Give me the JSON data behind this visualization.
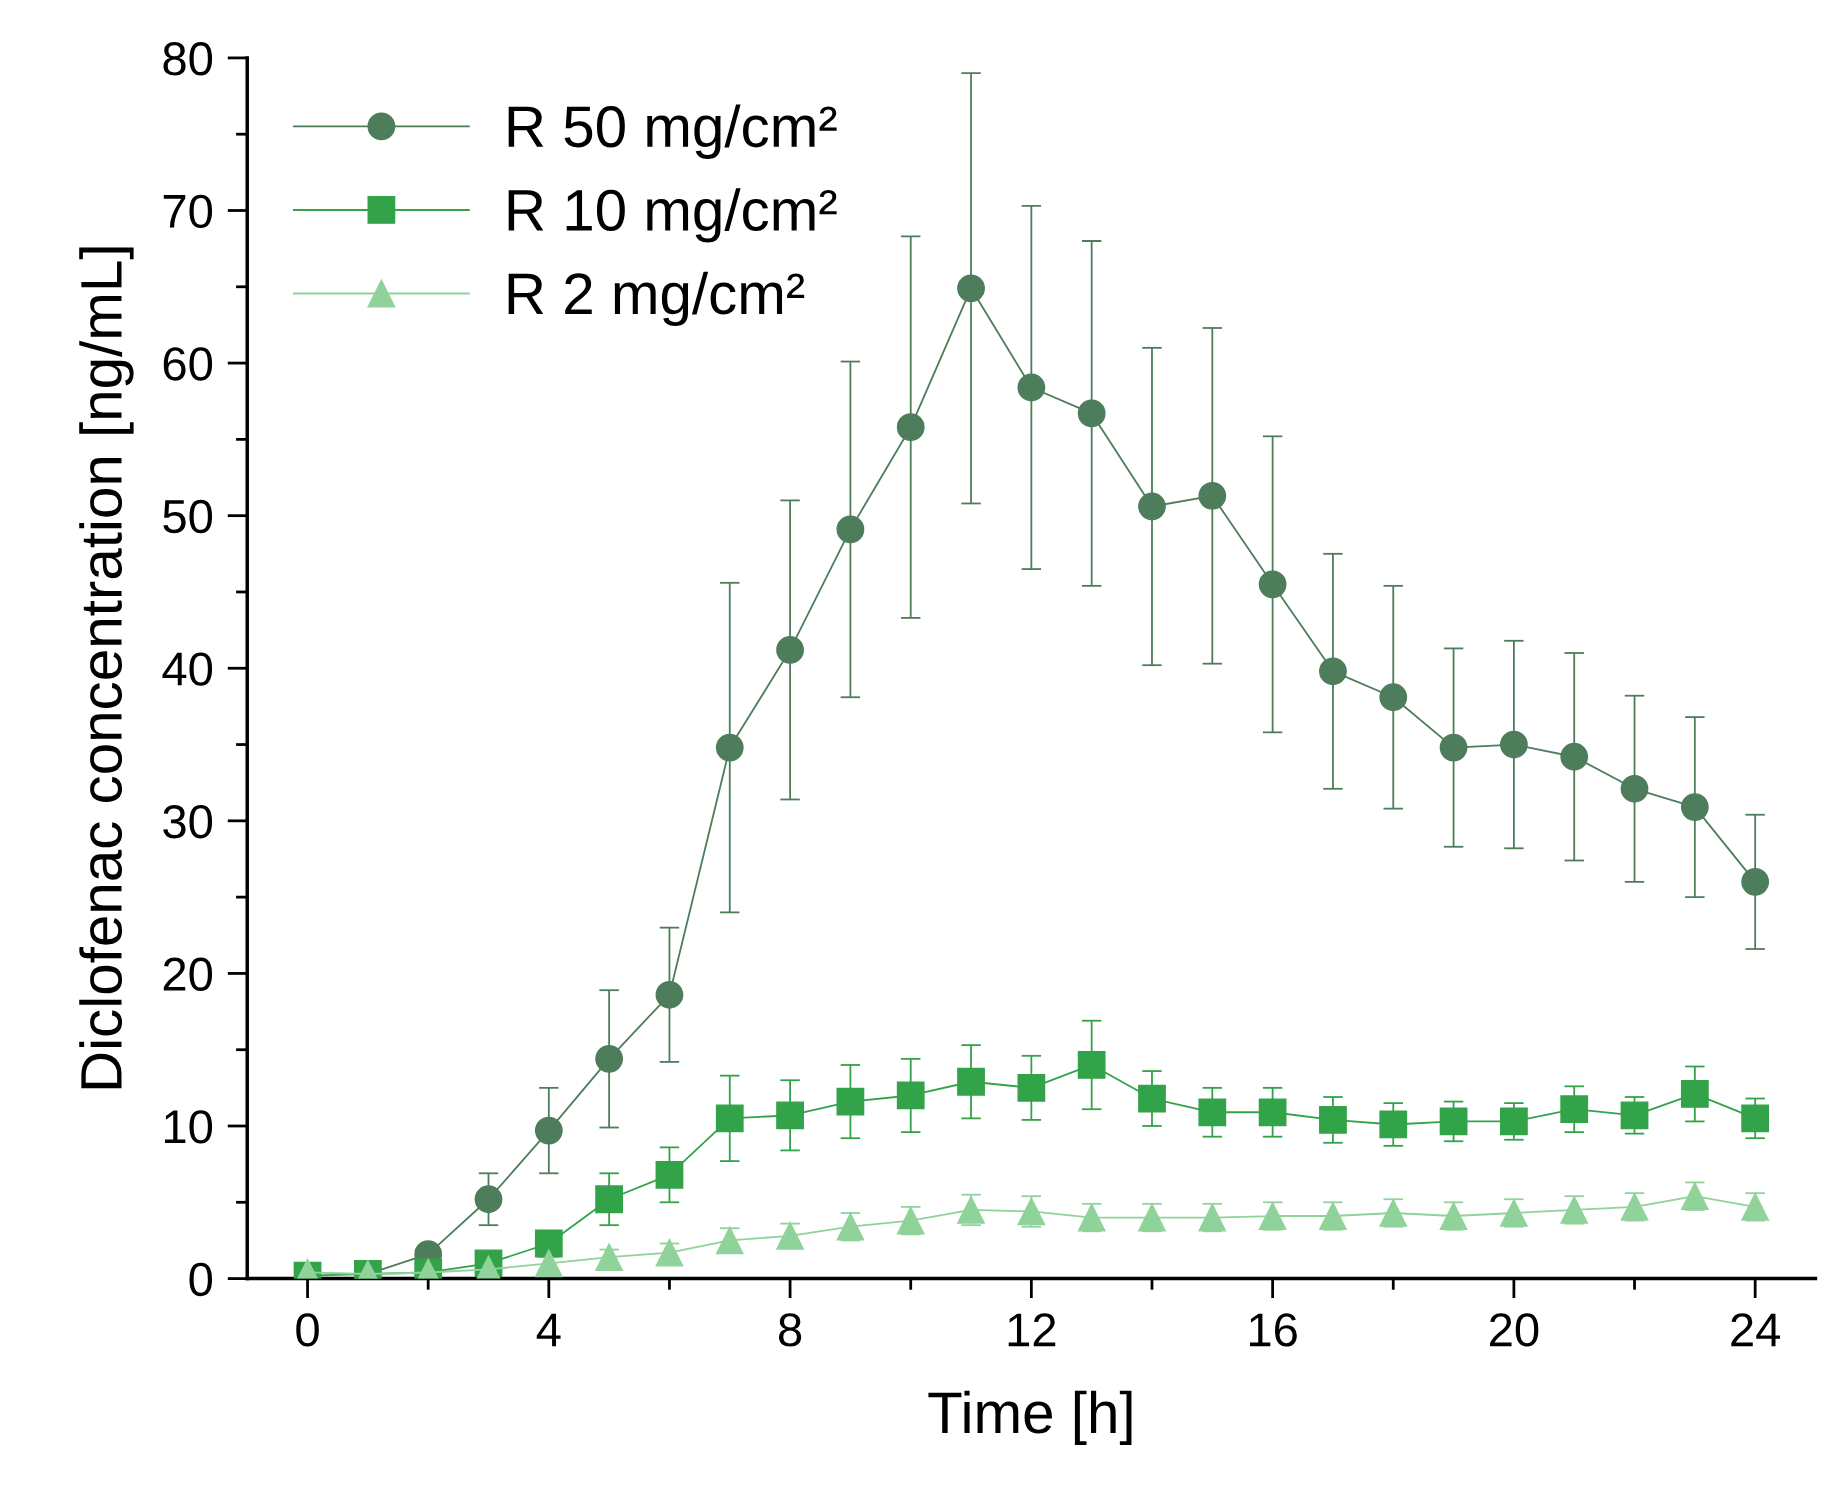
{
  "chart_data": {
    "type": "line",
    "xlabel": "Time [h]",
    "ylabel": "Diclofenac concentration [ng/mL]",
    "x": [
      0,
      1,
      2,
      3,
      4,
      5,
      6,
      7,
      8,
      9,
      10,
      11,
      12,
      13,
      14,
      15,
      16,
      17,
      18,
      19,
      20,
      21,
      22,
      23,
      24
    ],
    "xlim": [
      -1,
      25
    ],
    "ylim": [
      0,
      80
    ],
    "xticks": [
      0,
      {
        "value": 2,
        "label": null
      },
      4,
      {
        "value": 6,
        "label": null
      },
      8,
      {
        "value": 10,
        "label": null
      },
      12,
      {
        "value": 14,
        "label": null
      },
      16,
      {
        "value": 18,
        "label": null
      },
      20,
      {
        "value": 22,
        "label": null
      },
      24
    ],
    "yticks": [
      0,
      {
        "value": 5,
        "label": null
      },
      10,
      {
        "value": 15,
        "label": null
      },
      20,
      {
        "value": 25,
        "label": null
      },
      30,
      {
        "value": 35,
        "label": null
      },
      40,
      {
        "value": 45,
        "label": null
      },
      50,
      {
        "value": 55,
        "label": null
      },
      60,
      {
        "value": 65,
        "label": null
      },
      70,
      {
        "value": 75,
        "label": null
      },
      80
    ],
    "legend": "top left",
    "grid": false,
    "line_style": "solid",
    "series": [
      {
        "name": "R 50 mg/cm²",
        "color": "#4e7d5b",
        "marker": "circle",
        "values": [
          null,
          0.3,
          1.6,
          5.2,
          9.7,
          14.4,
          18.6,
          34.8,
          41.2,
          49.1,
          55.8,
          64.9,
          58.4,
          56.7,
          50.6,
          51.3,
          45.5,
          39.8,
          38.1,
          34.8,
          35.0,
          34.2,
          32.1,
          30.9,
          26.0
        ],
        "errors": [
          null,
          0.2,
          0.5,
          1.7,
          2.8,
          4.5,
          4.4,
          10.8,
          9.8,
          11.0,
          12.5,
          14.1,
          11.9,
          11.3,
          10.4,
          11.0,
          9.7,
          7.7,
          7.3,
          6.5,
          6.8,
          6.8,
          6.1,
          5.9,
          4.4
        ]
      },
      {
        "name": "R 10 mg/cm²",
        "color": "#33a34a",
        "marker": "square",
        "values": [
          0.2,
          0.3,
          0.4,
          1.0,
          2.3,
          5.2,
          6.8,
          10.5,
          10.7,
          11.6,
          12.0,
          12.9,
          12.5,
          14.0,
          11.8,
          10.9,
          10.9,
          10.4,
          10.1,
          10.3,
          10.3,
          11.1,
          10.7,
          12.1,
          10.5
        ],
        "errors": [
          0.1,
          0.1,
          0.2,
          0.4,
          0.5,
          1.7,
          1.8,
          2.8,
          2.3,
          2.4,
          2.4,
          2.4,
          2.1,
          2.9,
          1.8,
          1.6,
          1.6,
          1.5,
          1.4,
          1.3,
          1.2,
          1.5,
          1.2,
          1.8,
          1.3
        ]
      },
      {
        "name": "R 2 mg/cm²",
        "color": "#90d39a",
        "marker": "triangle",
        "values": [
          0.4,
          0.3,
          0.4,
          0.6,
          1.0,
          1.4,
          1.7,
          2.5,
          2.8,
          3.4,
          3.8,
          4.5,
          4.4,
          4.0,
          4.0,
          4.0,
          4.1,
          4.1,
          4.3,
          4.1,
          4.3,
          4.5,
          4.7,
          5.4,
          4.7
        ],
        "errors": [
          0.2,
          0.2,
          0.2,
          0.3,
          0.4,
          0.5,
          0.6,
          0.8,
          0.8,
          0.9,
          0.9,
          1.0,
          1.0,
          0.9,
          0.9,
          0.9,
          0.9,
          0.9,
          0.9,
          0.9,
          0.9,
          0.9,
          0.9,
          0.9,
          0.9
        ]
      }
    ]
  }
}
